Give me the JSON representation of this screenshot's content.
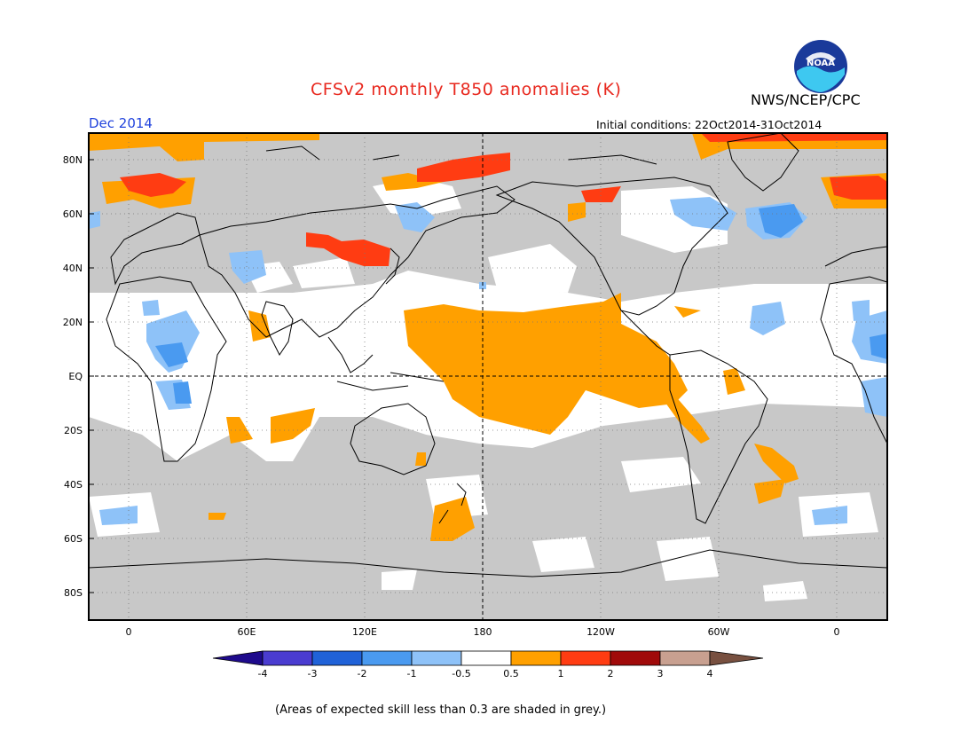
{
  "header": {
    "title": "CFSv2 monthly T850 anomalies (K)",
    "month": "Dec 2014",
    "agency": "NWS/NCEP/CPC",
    "initial_conditions": "Initial conditions: 22Oct2014-31Oct2014",
    "logo_text": "NOAA"
  },
  "map": {
    "lat_labels": [
      "80N",
      "60N",
      "40N",
      "20N",
      "EQ",
      "20S",
      "40S",
      "60S",
      "80S"
    ],
    "lon_labels": [
      "0",
      "60E",
      "120E",
      "180",
      "120W",
      "60W",
      "0"
    ],
    "skill_mask_color": "#c8c8c8",
    "near_zero_color": "#ffffff"
  },
  "colorbar": {
    "labels": [
      "-4",
      "-3",
      "-2",
      "-1",
      "-0.5",
      "0.5",
      "1",
      "2",
      "3",
      "4"
    ],
    "colors": [
      "#1e0a8c",
      "#4a3cd0",
      "#2062d8",
      "#4a9af0",
      "#8ec2f8",
      "#ffffff",
      "#ffa000",
      "#ff3c12",
      "#a00a0a",
      "#c8a090",
      "#785040"
    ]
  },
  "footer": {
    "note": "(Areas of expected skill less than 0.3 are shaded in grey.)"
  }
}
